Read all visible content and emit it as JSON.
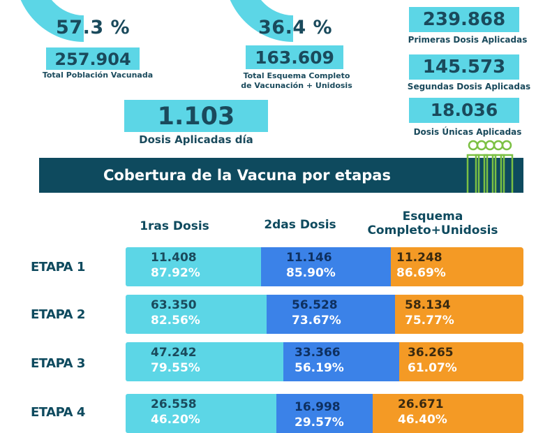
{
  "summary": {
    "vaccinated_percent": "57.3 %",
    "complete_percent": "36.4 %",
    "total_vaccinated": "257.904",
    "total_vaccinated_label": "Total Población Vacunada",
    "complete_total": "163.609",
    "complete_label_line1": "Total Esquema Completo",
    "complete_label_line2": "de Vacunación + Unidosis",
    "daily_doses": "1.103",
    "daily_doses_label": "Dosis Aplicadas día",
    "first_doses": "239.868",
    "first_doses_label": "Primeras Dosis Aplicadas",
    "second_doses": "145.573",
    "second_doses_label": "Segundas Dosis Aplicadas",
    "single_doses": "18.036",
    "single_doses_label": "Dosis Únicas Aplicadas"
  },
  "banner": {
    "title": "Cobertura de la Vacuna por etapas",
    "icon": "people-group-icon"
  },
  "columns": {
    "first": "1ras Dosis",
    "second": "2das Dosis",
    "third_line1": "Esquema",
    "third_line2": "Completo+Unidosis"
  },
  "stages": [
    {
      "label": "ETAPA 1",
      "first_n": "11.408",
      "first_p": "87.92%",
      "second_n": "11.146",
      "second_p": "85.90%",
      "third_n": "11.248",
      "third_p": "86.69%"
    },
    {
      "label": "ETAPA 2",
      "first_n": "63.350",
      "first_p": "82.56%",
      "second_n": "56.528",
      "second_p": "73.67%",
      "third_n": "58.134",
      "third_p": "75.77%"
    },
    {
      "label": "ETAPA 3",
      "first_n": "47.242",
      "first_p": "79.55%",
      "second_n": "33.366",
      "second_p": "56.19%",
      "third_n": "36.265",
      "third_p": "61.07%"
    },
    {
      "label": "ETAPA 4",
      "first_n": "26.558",
      "first_p": "46.20%",
      "second_n": "16.998",
      "second_p": "29.57%",
      "third_n": "26.671",
      "third_p": "46.40%"
    }
  ],
  "colors": {
    "cyan": "#5cd6e6",
    "blue": "#3b82e8",
    "orange": "#f49a25",
    "navy": "#0e4a5e",
    "icon_green": "#7bc043"
  }
}
